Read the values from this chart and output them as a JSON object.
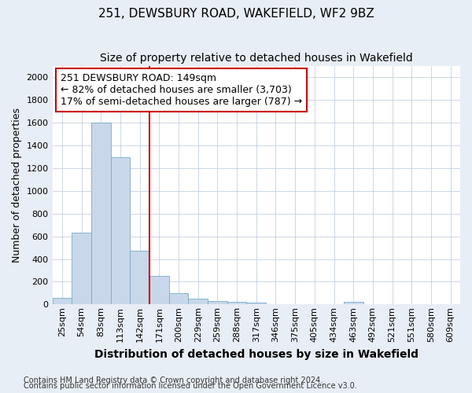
{
  "title": "251, DEWSBURY ROAD, WAKEFIELD, WF2 9BZ",
  "subtitle": "Size of property relative to detached houses in Wakefield",
  "xlabel": "Distribution of detached houses by size in Wakefield",
  "ylabel": "Number of detached properties",
  "categories": [
    "25sqm",
    "54sqm",
    "83sqm",
    "113sqm",
    "142sqm",
    "171sqm",
    "200sqm",
    "229sqm",
    "259sqm",
    "288sqm",
    "317sqm",
    "346sqm",
    "375sqm",
    "405sqm",
    "434sqm",
    "463sqm",
    "492sqm",
    "521sqm",
    "551sqm",
    "580sqm",
    "609sqm"
  ],
  "values": [
    60,
    630,
    1600,
    1300,
    475,
    248,
    100,
    50,
    30,
    22,
    15,
    0,
    0,
    0,
    0,
    20,
    0,
    0,
    0,
    0,
    0
  ],
  "bar_color": "#c8d8ea",
  "bar_edge_color": "#7aaac8",
  "vline_x_index": 4,
  "vline_color": "#cc0000",
  "annotation_text": "251 DEWSBURY ROAD: 149sqm\n← 82% of detached houses are smaller (3,703)\n17% of semi-detached houses are larger (787) →",
  "annotation_box_facecolor": "#ffffff",
  "annotation_box_edgecolor": "#cc0000",
  "ylim": [
    0,
    2100
  ],
  "yticks": [
    0,
    200,
    400,
    600,
    800,
    1000,
    1200,
    1400,
    1600,
    1800,
    2000
  ],
  "footnote1": "Contains HM Land Registry data © Crown copyright and database right 2024.",
  "footnote2": "Contains public sector information licensed under the Open Government Licence v3.0.",
  "bg_color": "#e8eef5",
  "plot_bg_color": "#ffffff",
  "title_fontsize": 11,
  "subtitle_fontsize": 10,
  "xlabel_fontsize": 10,
  "ylabel_fontsize": 9,
  "tick_fontsize": 8,
  "annotation_fontsize": 9,
  "footnote_fontsize": 7
}
